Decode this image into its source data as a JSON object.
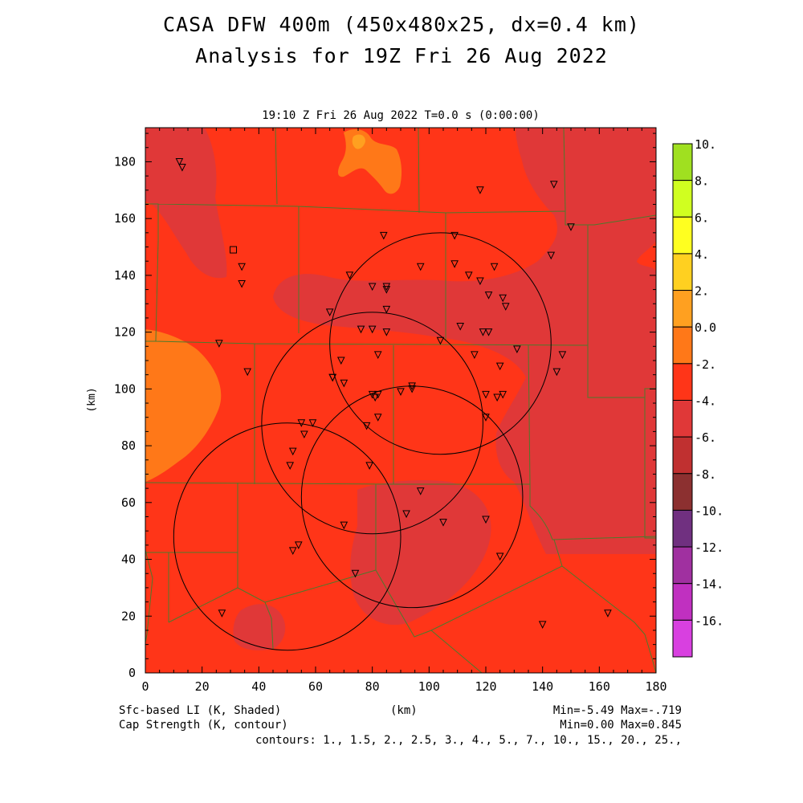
{
  "title_line1": "CASA DFW 400m (450x480x25, dx=0.4 km)",
  "title_line2": "Analysis for 19Z Fri 26 Aug 2022",
  "subtitle": "19:10 Z Fri 26 Aug 2022   T=0.0 s (0:00:00)",
  "footer": {
    "field1": "Sfc-based LI (K, Shaded)",
    "field2": "Cap Strength (K, contour)",
    "xunits": "(km)",
    "stats1": "Min=-5.49 Max=-.719",
    "stats2": "Min=0.00 Max=0.845",
    "contours": "contours: 1., 1.5, 2., 2.5, 3., 4., 5., 7., 10., 15., 20., 25.,"
  },
  "chart_data": {
    "type": "heatmap",
    "xlabel": "(km)",
    "ylabel": "(km)",
    "xlim": [
      0,
      180
    ],
    "ylim": [
      0,
      192
    ],
    "xticks": [
      0,
      20,
      40,
      60,
      80,
      100,
      120,
      140,
      160,
      180
    ],
    "yticks": [
      0,
      20,
      40,
      60,
      80,
      100,
      120,
      140,
      160,
      180
    ],
    "colorbar": {
      "labels": [
        "10.",
        "8.",
        "6.",
        "4.",
        "2.",
        "0.0",
        "-2.",
        "-4.",
        "-6.",
        "-8.",
        "-10.",
        "-12.",
        "-14.",
        "-16."
      ],
      "colors": [
        "#a0e020",
        "#d0ff20",
        "#ffff20",
        "#ffd020",
        "#ffa020",
        "#ff7818",
        "#ff3518",
        "#e03838",
        "#c03030",
        "#8c3030",
        "#703080",
        "#a030a0",
        "#c030c0",
        "#d840e0"
      ]
    },
    "radar_ranges": [
      {
        "center": [
          104,
          116
        ],
        "radius": 39
      },
      {
        "center": [
          80,
          88
        ],
        "radius": 39
      },
      {
        "center": [
          94,
          62
        ],
        "radius": 39
      },
      {
        "center": [
          50,
          48
        ],
        "radius": 40
      }
    ],
    "stations_triangle": [
      [
        12,
        180
      ],
      [
        13,
        178
      ],
      [
        118,
        170
      ],
      [
        144,
        172
      ],
      [
        150,
        157
      ],
      [
        109,
        154
      ],
      [
        84,
        154
      ],
      [
        34,
        143
      ],
      [
        34,
        137
      ],
      [
        72,
        140
      ],
      [
        80,
        136
      ],
      [
        85,
        136
      ],
      [
        85,
        135
      ],
      [
        97,
        143
      ],
      [
        109,
        144
      ],
      [
        114,
        140
      ],
      [
        118,
        138
      ],
      [
        123,
        143
      ],
      [
        121,
        133
      ],
      [
        126,
        132
      ],
      [
        127,
        129
      ],
      [
        143,
        147
      ],
      [
        65,
        127
      ],
      [
        85,
        128
      ],
      [
        76,
        121
      ],
      [
        80,
        121
      ],
      [
        85,
        120
      ],
      [
        111,
        122
      ],
      [
        119,
        120
      ],
      [
        121,
        120
      ],
      [
        104,
        117
      ],
      [
        26,
        116
      ],
      [
        82,
        112
      ],
      [
        116,
        112
      ],
      [
        131,
        114
      ],
      [
        147,
        112
      ],
      [
        36,
        106
      ],
      [
        66,
        104
      ],
      [
        69,
        110
      ],
      [
        66,
        104
      ],
      [
        70,
        102
      ],
      [
        125,
        108
      ],
      [
        145,
        106
      ],
      [
        80,
        98
      ],
      [
        82,
        98
      ],
      [
        81,
        97
      ],
      [
        90,
        99
      ],
      [
        94,
        101
      ],
      [
        94,
        100
      ],
      [
        120,
        98
      ],
      [
        124,
        97
      ],
      [
        126,
        98
      ],
      [
        59,
        88
      ],
      [
        82,
        90
      ],
      [
        120,
        90
      ],
      [
        78,
        87
      ],
      [
        55,
        88
      ],
      [
        56,
        84
      ],
      [
        52,
        78
      ],
      [
        51,
        73
      ],
      [
        79,
        73
      ],
      [
        97,
        64
      ],
      [
        92,
        56
      ],
      [
        70,
        52
      ],
      [
        105,
        53
      ],
      [
        120,
        54
      ],
      [
        52,
        43
      ],
      [
        54,
        45
      ],
      [
        125,
        41
      ],
      [
        74,
        35
      ],
      [
        27,
        21
      ],
      [
        140,
        17
      ],
      [
        163,
        21
      ]
    ],
    "stations_square": [
      [
        31,
        149
      ]
    ],
    "field_stats": {
      "min": -5.49,
      "max": -0.719
    },
    "contour_stats": {
      "min": 0.0,
      "max": 0.845
    }
  }
}
